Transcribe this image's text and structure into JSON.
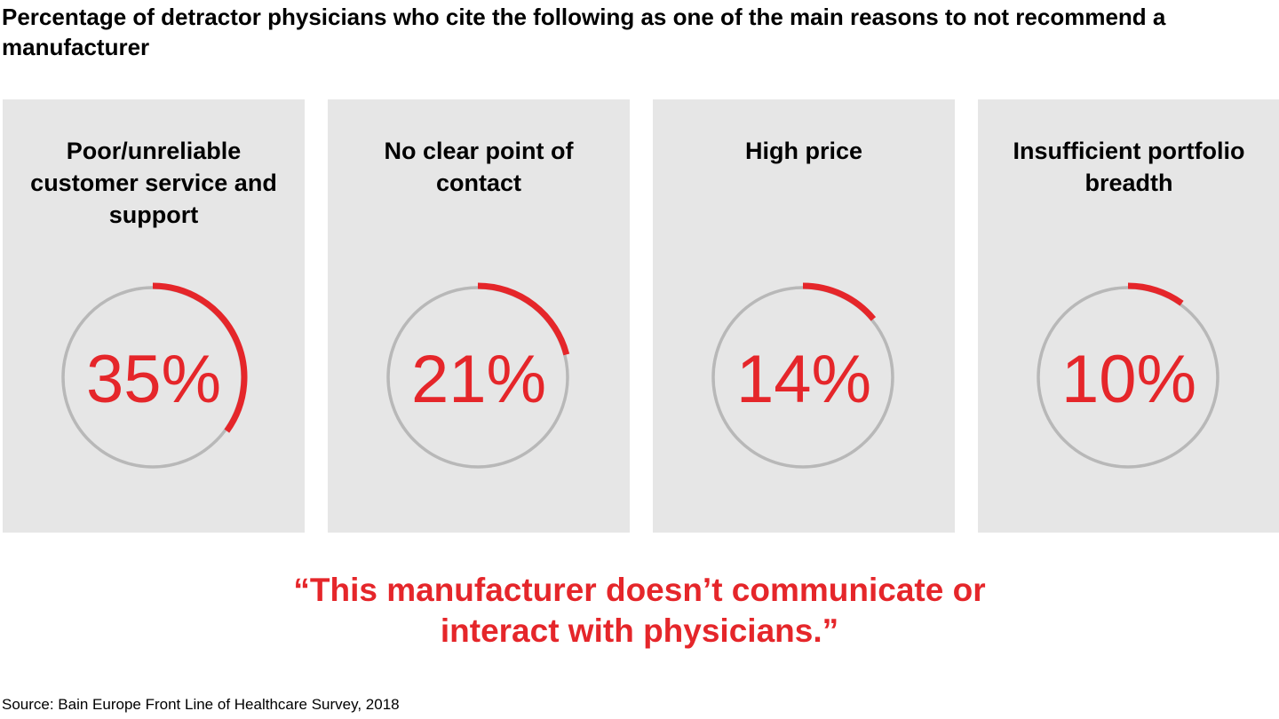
{
  "title": "Percentage of detractor physicians who cite the following as one of the main reasons to not recommend a manufacturer",
  "chart_data": {
    "type": "donut-progress",
    "categories": [
      "Poor/unreliable customer service and support",
      "No clear point of contact",
      "High price",
      "Insufficient portfolio breadth"
    ],
    "values": [
      35,
      21,
      14,
      10
    ],
    "value_labels": [
      "35%",
      "21%",
      "14%",
      "10%"
    ],
    "unit": "%",
    "max": 100
  },
  "colors": {
    "accent": "#e5262a",
    "track": "#b8b8b8",
    "panel": "#e6e6e6"
  },
  "quote": "“This manufacturer doesn’t communicate or interact with physicians.”",
  "source": "Source: Bain Europe Front Line of Healthcare Survey, 2018"
}
